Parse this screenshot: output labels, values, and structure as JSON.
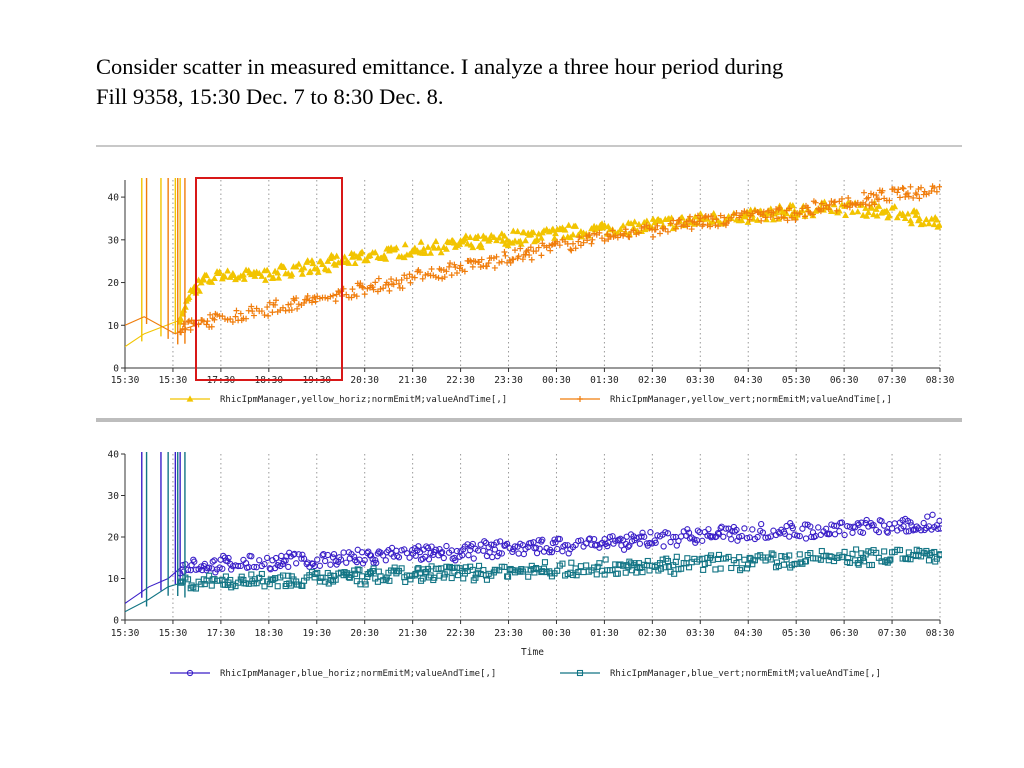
{
  "slide": {
    "text_line1": "Consider scatter in measured emittance.  I analyze a three hour period during",
    "text_line2": "Fill 9358, 15:30 Dec. 7 to 8:30 Dec. 8."
  },
  "colors": {
    "yellow_horiz": "#f2c400",
    "yellow_vert": "#f07d0c",
    "blue_horiz": "#3a1fc8",
    "blue_vert": "#137585",
    "highlight_box": "#d81818",
    "grid": "#9a9a9a"
  },
  "chart_data": [
    {
      "type": "scatter",
      "x_tick_labels": [
        "15:30",
        "15:30",
        "17:30",
        "18:30",
        "19:30",
        "20:30",
        "21:30",
        "22:30",
        "23:30",
        "00:30",
        "01:30",
        "02:30",
        "03:30",
        "04:30",
        "05:30",
        "06:30",
        "07:30",
        "08:30"
      ],
      "xlabel": "",
      "ylabel": "",
      "y_ticks": [
        0,
        10,
        20,
        30,
        40
      ],
      "ylim": [
        0,
        44
      ],
      "legend_placement": "bottom",
      "highlight_range": [
        "16:30",
        "19:30"
      ],
      "series": [
        {
          "name": "RhicIpmManager,yellow_horiz;normEmitM;valueAndTime[,]",
          "marker": "triangle",
          "values": [
            [
              0,
              5
            ],
            [
              0.4,
              8
            ],
            [
              1.1,
              11
            ],
            [
              1.4,
              18
            ],
            [
              1.6,
              20
            ],
            [
              1.8,
              21
            ],
            [
              2,
              21.5
            ],
            [
              3,
              22
            ],
            [
              4,
              24
            ],
            [
              5,
              26
            ],
            [
              6,
              27.5
            ],
            [
              7,
              29
            ],
            [
              8,
              30.5
            ],
            [
              9,
              31.5
            ],
            [
              10,
              32.5
            ],
            [
              11,
              33.5
            ],
            [
              12,
              34.5
            ],
            [
              13,
              35.5
            ],
            [
              14,
              36.5
            ],
            [
              15,
              37.5
            ],
            [
              16,
              36.5
            ],
            [
              17,
              34
            ],
            [
              18,
              32.5
            ]
          ]
        },
        {
          "name": "RhicIpmManager,yellow_vert;normEmitM;valueAndTime[,]",
          "marker": "plus",
          "values": [
            [
              0,
              10
            ],
            [
              0.4,
              12
            ],
            [
              1.05,
              8
            ],
            [
              1.2,
              9
            ],
            [
              1.6,
              10.5
            ],
            [
              2,
              11.5
            ],
            [
              3,
              14
            ],
            [
              4,
              16
            ],
            [
              5,
              18.5
            ],
            [
              6,
              21
            ],
            [
              7,
              23.5
            ],
            [
              8,
              26
            ],
            [
              9,
              28.5
            ],
            [
              10,
              30.5
            ],
            [
              11,
              32.5
            ],
            [
              12,
              34
            ],
            [
              13,
              35.5
            ],
            [
              14,
              36.5
            ],
            [
              15,
              38.5
            ],
            [
              16,
              40.5
            ],
            [
              17,
              42
            ],
            [
              18,
              42.5
            ]
          ]
        }
      ]
    },
    {
      "type": "scatter",
      "x_tick_labels": [
        "15:30",
        "15:30",
        "17:30",
        "18:30",
        "19:30",
        "20:30",
        "21:30",
        "22:30",
        "23:30",
        "00:30",
        "01:30",
        "02:30",
        "03:30",
        "04:30",
        "05:30",
        "06:30",
        "07:30",
        "08:30"
      ],
      "xlabel": "Time",
      "ylabel": "",
      "y_ticks": [
        0,
        10,
        20,
        30,
        40
      ],
      "ylim": [
        0,
        40
      ],
      "legend_placement": "bottom",
      "series": [
        {
          "name": "RhicIpmManager,blue_horiz;normEmitM;valueAndTime[,]",
          "marker": "circle",
          "values": [
            [
              0,
              4
            ],
            [
              0.5,
              8
            ],
            [
              0.9,
              10
            ],
            [
              1.2,
              13
            ],
            [
              2,
              13.5
            ],
            [
              3,
              14
            ],
            [
              4,
              14.5
            ],
            [
              5,
              15
            ],
            [
              6,
              16
            ],
            [
              7,
              16.5
            ],
            [
              8,
              17.5
            ],
            [
              9,
              18
            ],
            [
              10,
              18.5
            ],
            [
              11,
              19.5
            ],
            [
              12,
              20.5
            ],
            [
              13,
              21
            ],
            [
              14,
              21.5
            ],
            [
              15,
              22
            ],
            [
              16,
              22.5
            ],
            [
              17,
              23.5
            ],
            [
              18,
              25
            ]
          ]
        },
        {
          "name": "RhicIpmManager,blue_vert;normEmitM;valueAndTime[,]",
          "marker": "square",
          "values": [
            [
              0,
              2
            ],
            [
              0.5,
              5
            ],
            [
              0.9,
              8
            ],
            [
              1.2,
              9
            ],
            [
              2,
              9.5
            ],
            [
              3,
              9.5
            ],
            [
              4,
              10
            ],
            [
              5,
              10.5
            ],
            [
              6,
              11
            ],
            [
              7,
              11.5
            ],
            [
              8,
              12
            ],
            [
              9,
              12
            ],
            [
              10,
              12.5
            ],
            [
              11,
              13
            ],
            [
              12,
              13.5
            ],
            [
              13,
              14
            ],
            [
              14,
              14.5
            ],
            [
              15,
              15
            ],
            [
              16,
              15.5
            ],
            [
              17,
              16
            ],
            [
              18,
              16.5
            ]
          ]
        }
      ]
    }
  ]
}
